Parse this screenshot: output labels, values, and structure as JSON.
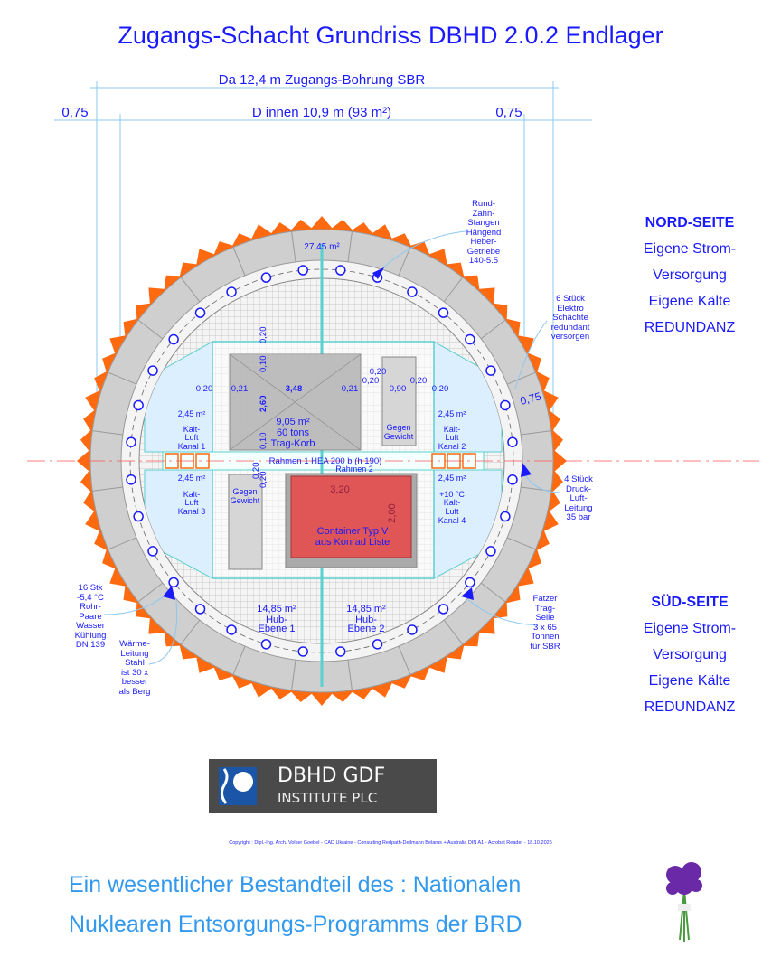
{
  "title": "Zugangs-Schacht Grundriss DBHD 2.0.2 Endlager",
  "dimensions": {
    "outer": "Da 12,4 m Zugangs-Bohrung SBR",
    "inner": "D innen 10,9 m (93 m²)",
    "left_wall": "0,75",
    "right_wall": "0,75",
    "ring_wall": "0,75"
  },
  "north": {
    "heading": "NORD-SEITE",
    "lines": [
      "Eigene Strom-",
      "Versorgung",
      "Eigene Kälte",
      "REDUNDANZ"
    ]
  },
  "south": {
    "heading": "SÜD-SEITE",
    "lines": [
      "Eigene Strom-",
      "Versorgung",
      "Eigene Kälte",
      "REDUNDANZ"
    ]
  },
  "annotations": {
    "rack": [
      "Rund-",
      "Zahn-",
      "Stangen",
      "Hängend",
      "Heber-",
      "Getriebe",
      "140-5.5"
    ],
    "electro": [
      "6 Stück",
      "Elektro",
      "Schächte",
      "redundant",
      "versorgen"
    ],
    "air": [
      "4 Stück",
      "Druck-",
      "Luft-",
      "Leitung",
      "35 bar"
    ],
    "ropes": [
      "Fatzer",
      "Trag-",
      "Seile",
      "3 x 65",
      "Tonnen",
      "für SBR"
    ],
    "cooling": [
      "16 Stk",
      "-5,4 °C",
      "Rohr-",
      "Paare",
      "Wasser",
      "Kühlung",
      "DN 139"
    ],
    "heat": [
      "Wärme-",
      "Leitung",
      "Stahl",
      "ist 30 x",
      "besser",
      "als Berg"
    ]
  },
  "plan": {
    "north_area": "27,45 m²",
    "cage_area": "9,05 m²",
    "cage_load": "60 tons",
    "cage_name": "Trag-Korb",
    "cage_width": "3,48",
    "cage_depth": "2,60",
    "gap_021": "0,21",
    "gap_020": "0,20",
    "gap_010": "0,10",
    "cw_width": "0,90",
    "counterweight": [
      "Gegen",
      "Gewicht"
    ],
    "frame1": "Rahmen 1 HEA 200 b (h 190)",
    "frame2": "Rahmen 2",
    "channel_area": "2,45 m²",
    "channel1": [
      "Kalt-",
      "Luft",
      "Kanal 1"
    ],
    "channel2": [
      "Kalt-",
      "Luft",
      "Kanal 2"
    ],
    "channel3": [
      "Kalt-",
      "Luft",
      "Kanal 3"
    ],
    "channel4": [
      "+10 °C",
      "Kalt-",
      "Luft",
      "Kanal 4"
    ],
    "container_w": "3,20",
    "container_h": "2,00",
    "container": [
      "Container Typ V",
      "aus Konrad Liste"
    ],
    "hub1": [
      "14,85 m²",
      "Hub-",
      "Ebene 1"
    ],
    "hub2": [
      "14,85 m²",
      "Hub-",
      "Ebene 2"
    ]
  },
  "logo": {
    "line1": "DBHD GDF",
    "line2": "INSTITUTE PLC"
  },
  "copyright": "Copyright : Dipl.-Ing. Arch. Volker Goebel - CAD Ukraine - Consulting Redpath-Deilmann Belarus + Australia  DIN A1 - Acrobat Reader - 18.10.2025",
  "footer": [
    "Ein wesentlicher Bestandteil des : Nationalen",
    "Nuklearen Entsorgungs-Programms der BRD"
  ],
  "colors": {
    "text": "#1a1aff",
    "orange": "#ff6a10",
    "ring": "#cfcfcf",
    "container": "#e05555",
    "channel": "#dcefff",
    "footer": "#3399ee"
  }
}
